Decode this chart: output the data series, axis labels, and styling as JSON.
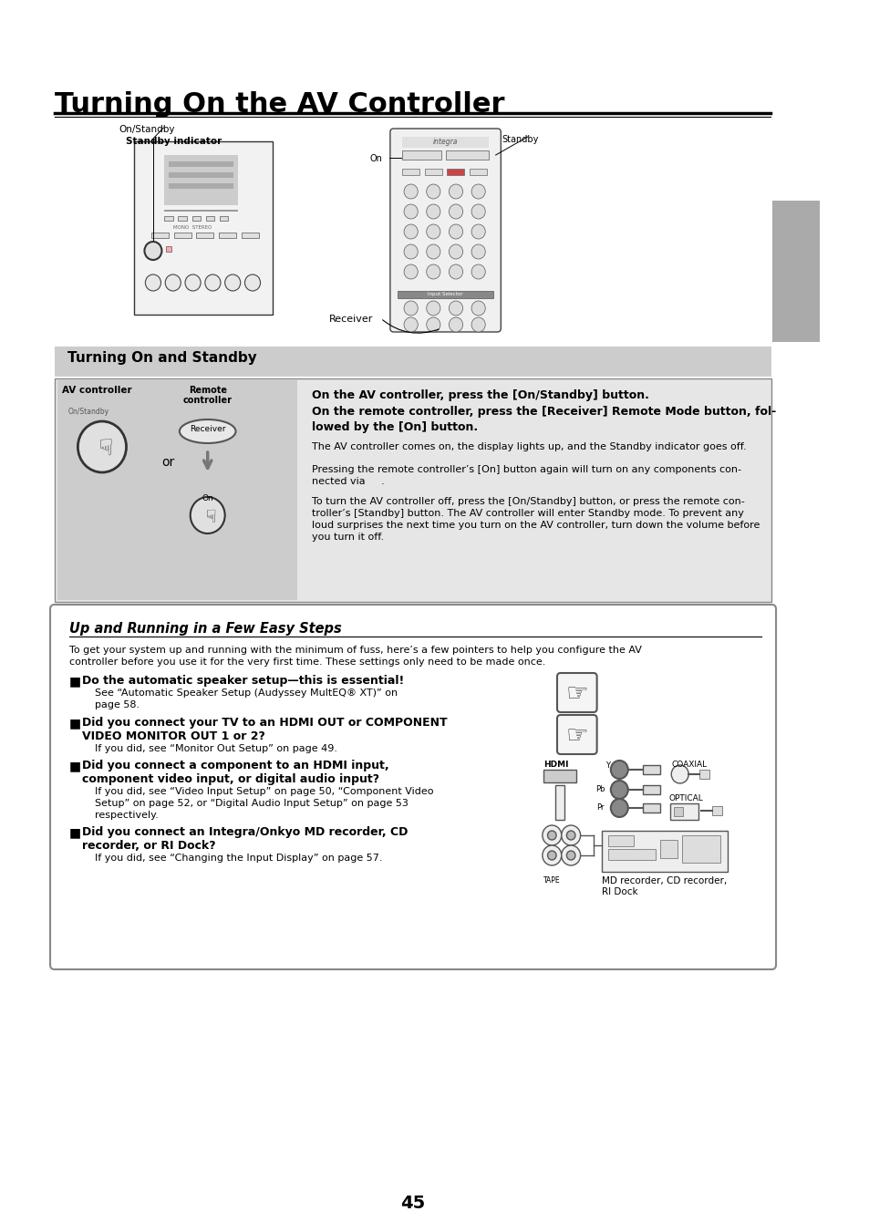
{
  "title": "Turning On the AV Controller",
  "page_number": "45",
  "background_color": "#ffffff",
  "section1_title": "Turning On and Standby",
  "section2_title": "Up and Running in a Few Easy Steps",
  "turning_on_bold1": "On the AV controller, press the [On/Standby] button.",
  "turning_on_bold2": "On the remote controller, press the [Receiver] Remote Mode button, fol-",
  "turning_on_bold3": "lowed by the [On] button.",
  "turning_on_p1": "The AV controller comes on, the display lights up, and the Standby indicator goes off.",
  "turning_on_p2a": "Pressing the remote controller’s [On] button again will turn on any components con-",
  "turning_on_p2b": "nected via     .",
  "turning_on_p3a": "To turn the AV controller off, press the [On/Standby] button, or press the remote con-",
  "turning_on_p3b": "troller’s [Standby] button. The AV controller will enter Standby mode. To prevent any",
  "turning_on_p3c": "loud surprises the next time you turn on the AV controller, turn down the volume before",
  "turning_on_p3d": "you turn it off.",
  "av_controller_label": "AV controller",
  "remote_label_line1": "Remote",
  "remote_label_line2": "controller",
  "or_text": "or",
  "on_standby_label": "On/Standby",
  "standby_indicator_label": "Standby indicator",
  "standby_label": "Standby",
  "on_label": "On",
  "receiver_label": "Receiver",
  "easy_steps_intro1": "To get your system up and running with the minimum of fuss, here’s a few pointers to help you configure the AV",
  "easy_steps_intro2": "controller before you use it for the very first time. These settings only need to be made once.",
  "bullet1_bold": "Do the automatic speaker setup—this is essential!",
  "bullet1_text1": "See “Automatic Speaker Setup (Audyssey MultEQ® XT)” on",
  "bullet1_text2": "page 58.",
  "bullet2_bold1": "Did you connect your TV to an HDMI OUT or COMPONENT",
  "bullet2_bold2": "VIDEO MONITOR OUT 1 or 2?",
  "bullet2_text": "If you did, see “Monitor Out Setup” on page 49.",
  "bullet3_bold1": "Did you connect a component to an HDMI input,",
  "bullet3_bold2": "component video input, or digital audio input?",
  "bullet3_text1": "If you did, see “Video Input Setup” on page 50, “Component Video",
  "bullet3_text2": "Setup” on page 52, or “Digital Audio Input Setup” on page 53",
  "bullet3_text3": "respectively.",
  "bullet4_bold1": "Did you connect an Integra/Onkyo MD recorder, CD",
  "bullet4_bold2": "recorder, or RI Dock?",
  "bullet4_text": "If you did, see “Changing the Input Display” on page 57.",
  "hdmi_label": "HDMI",
  "coaxial_label": "COAXIAL",
  "optical_label": "OPTICAL",
  "md_label": "MD recorder, CD recorder,\nRI Dock",
  "tape_label": "TAPE"
}
